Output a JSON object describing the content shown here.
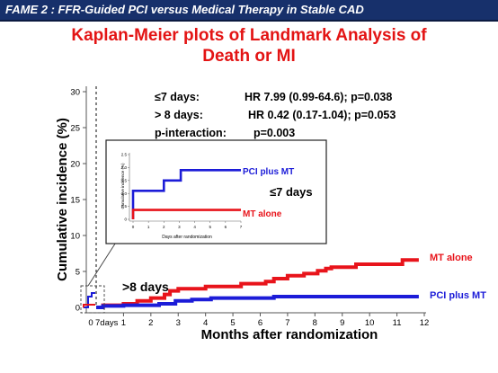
{
  "header": {
    "text": "FAME 2 : FFR-Guided PCI versus Medical Therapy in Stable CAD"
  },
  "title": {
    "line1": "Kaplan-Meier plots of Landmark Analysis of",
    "line2": "Death or MI"
  },
  "stats": {
    "line1_label": "≤7 days:",
    "line1_value": "HR 7.99 (0.99-64.6); p=0.038",
    "line2_label": "> 8 days:",
    "line2_value": "HR 0.42 (0.17-1.04); p=0.053",
    "line3_label": "p-interaction:",
    "line3_value": "p=0.003"
  },
  "annotations": {
    "gt8": ">8 days"
  },
  "colors": {
    "header_bg": "#17306b",
    "title": "#e31414",
    "mt_alone": "#e8141b",
    "pci_plus_mt": "#1c1cd8",
    "axis": "#555555"
  },
  "chart_data": [
    {
      "type": "line",
      "xlabel": "Months after randomization",
      "ylabel": "Cumulative incidence (%)",
      "xlim": [
        0,
        12
      ],
      "ylim": [
        0,
        30
      ],
      "x_ticks": [
        "1",
        "2",
        "3",
        "4",
        "5",
        "6",
        "7",
        "8",
        "9",
        "10",
        "11",
        "12"
      ],
      "x_ticks_extra": [
        "0",
        "7days"
      ],
      "y_ticks": [
        "0",
        "5",
        "10",
        "15",
        "20",
        "25",
        "30"
      ],
      "grid": false,
      "series": [
        {
          "name": "MT alone",
          "color": "#e8141b",
          "points": [
            [
              0,
              0
            ],
            [
              0.25,
              0.3
            ],
            [
              1.0,
              0.5
            ],
            [
              1.5,
              0.9
            ],
            [
              2.0,
              1.3
            ],
            [
              2.5,
              1.8
            ],
            [
              2.7,
              2.3
            ],
            [
              3.0,
              2.6
            ],
            [
              4.0,
              2.9
            ],
            [
              5.3,
              3.3
            ],
            [
              6.2,
              3.6
            ],
            [
              6.5,
              4.0
            ],
            [
              7.0,
              4.4
            ],
            [
              7.6,
              4.7
            ],
            [
              8.1,
              5.1
            ],
            [
              8.4,
              5.4
            ],
            [
              8.6,
              5.6
            ],
            [
              9.5,
              6.0
            ],
            [
              11.2,
              6.6
            ],
            [
              11.8,
              6.6
            ]
          ],
          "end_label": "MT alone"
        },
        {
          "name": "PCI plus MT",
          "color": "#1c1cd8",
          "points": [
            [
              0,
              0
            ],
            [
              0.25,
              0.2
            ],
            [
              1.0,
              0.3
            ],
            [
              2.3,
              0.5
            ],
            [
              2.9,
              0.9
            ],
            [
              3.5,
              1.1
            ],
            [
              4.2,
              1.3
            ],
            [
              6.5,
              1.5
            ],
            [
              11.8,
              1.5
            ]
          ],
          "end_label": "PCI plus MT"
        }
      ]
    },
    {
      "type": "line",
      "xlabel": "Days after randomization",
      "ylabel": "Cumulative incidence (%)",
      "xlim": [
        0,
        7
      ],
      "ylim": [
        0,
        2.5
      ],
      "x_ticks": [
        "0",
        "1",
        "2",
        "3",
        "4",
        "5",
        "6",
        "7"
      ],
      "y_ticks": [
        "0",
        "0.5",
        "1.0",
        "1.5",
        "2.0",
        "2.5"
      ],
      "annotation": "≤7 days",
      "series": [
        {
          "name": "PCI plus MT",
          "color": "#1c1cd8",
          "points": [
            [
              0,
              0
            ],
            [
              0,
              1.1
            ],
            [
              2.0,
              1.1
            ],
            [
              2.0,
              1.5
            ],
            [
              3.1,
              1.5
            ],
            [
              3.1,
              1.9
            ],
            [
              7.0,
              1.9
            ]
          ],
          "end_label": "PCI plus MT"
        },
        {
          "name": "MT alone",
          "color": "#e8141b",
          "points": [
            [
              0,
              0
            ],
            [
              0,
              0.36
            ],
            [
              7.0,
              0.36
            ]
          ],
          "end_label": "MT alone"
        }
      ]
    }
  ]
}
